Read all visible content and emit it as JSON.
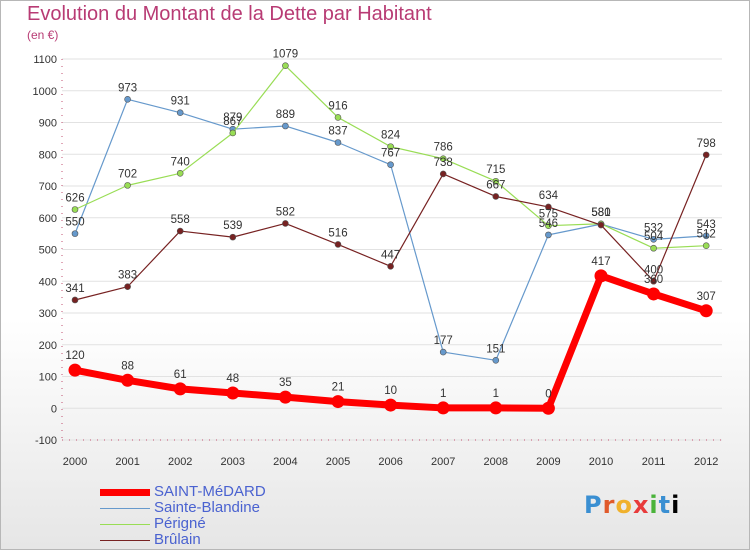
{
  "colors": {
    "title": "#b83b74",
    "axis_text": "#333333",
    "legend_text": "#4a62d0",
    "grid": "#e2e2e2"
  },
  "header": {
    "title": "Evolution du Montant de la Dette par Habitant",
    "unit": "(en €)"
  },
  "logo": {
    "text": "Proxiti"
  },
  "chart_data": {
    "type": "line",
    "title": "Evolution du Montant de la Dette par Habitant",
    "subtitle": "(en €)",
    "xlabel": "",
    "ylabel": "",
    "x": [
      "2000",
      "2001",
      "2002",
      "2003",
      "2004",
      "2005",
      "2006",
      "2007",
      "2008",
      "2009",
      "2010",
      "2011",
      "2012"
    ],
    "ylim": [
      -100,
      1100
    ],
    "yticks": [
      "-100",
      "0",
      "100",
      "200",
      "300",
      "400",
      "500",
      "600",
      "700",
      "800",
      "900",
      "1000",
      "1100"
    ],
    "grid": true,
    "legend_position": "bottom-left",
    "series": [
      {
        "name": "SAINT-MéDARD",
        "color": "#ff0000",
        "values": [
          120,
          88,
          61,
          48,
          35,
          21,
          10,
          1,
          1,
          0,
          417,
          360,
          307
        ],
        "labels": [
          "120",
          "88",
          "61",
          "48",
          "35",
          "21",
          "10",
          "1",
          "1",
          "0",
          "417",
          "360",
          "307"
        ]
      },
      {
        "name": "Sainte-Blandine",
        "color": "#6699cc",
        "values": [
          550,
          973,
          931,
          879,
          889,
          837,
          767,
          177,
          151,
          546,
          580,
          532,
          543
        ],
        "labels": [
          "550",
          "973",
          "931",
          "879",
          "889",
          "837",
          "767",
          "177",
          "151",
          "546",
          "580",
          "532",
          "543"
        ]
      },
      {
        "name": "Périgné",
        "color": "#99dd55",
        "values": [
          626,
          702,
          740,
          867,
          1079,
          916,
          824,
          786,
          715,
          575,
          581,
          504,
          512
        ],
        "labels": [
          "626",
          "702",
          "740",
          "867",
          "1079",
          "916",
          "824",
          "786",
          "715",
          "575",
          "581",
          "504",
          "512"
        ]
      },
      {
        "name": "Brûlain",
        "color": "#772222",
        "values": [
          341,
          383,
          558,
          539,
          582,
          516,
          447,
          738,
          667,
          634,
          577,
          400,
          798
        ],
        "labels": [
          "341",
          "383",
          "558",
          "539",
          "582",
          "516",
          "447",
          "738",
          "667",
          "634",
          "",
          "400",
          "798"
        ]
      }
    ]
  }
}
